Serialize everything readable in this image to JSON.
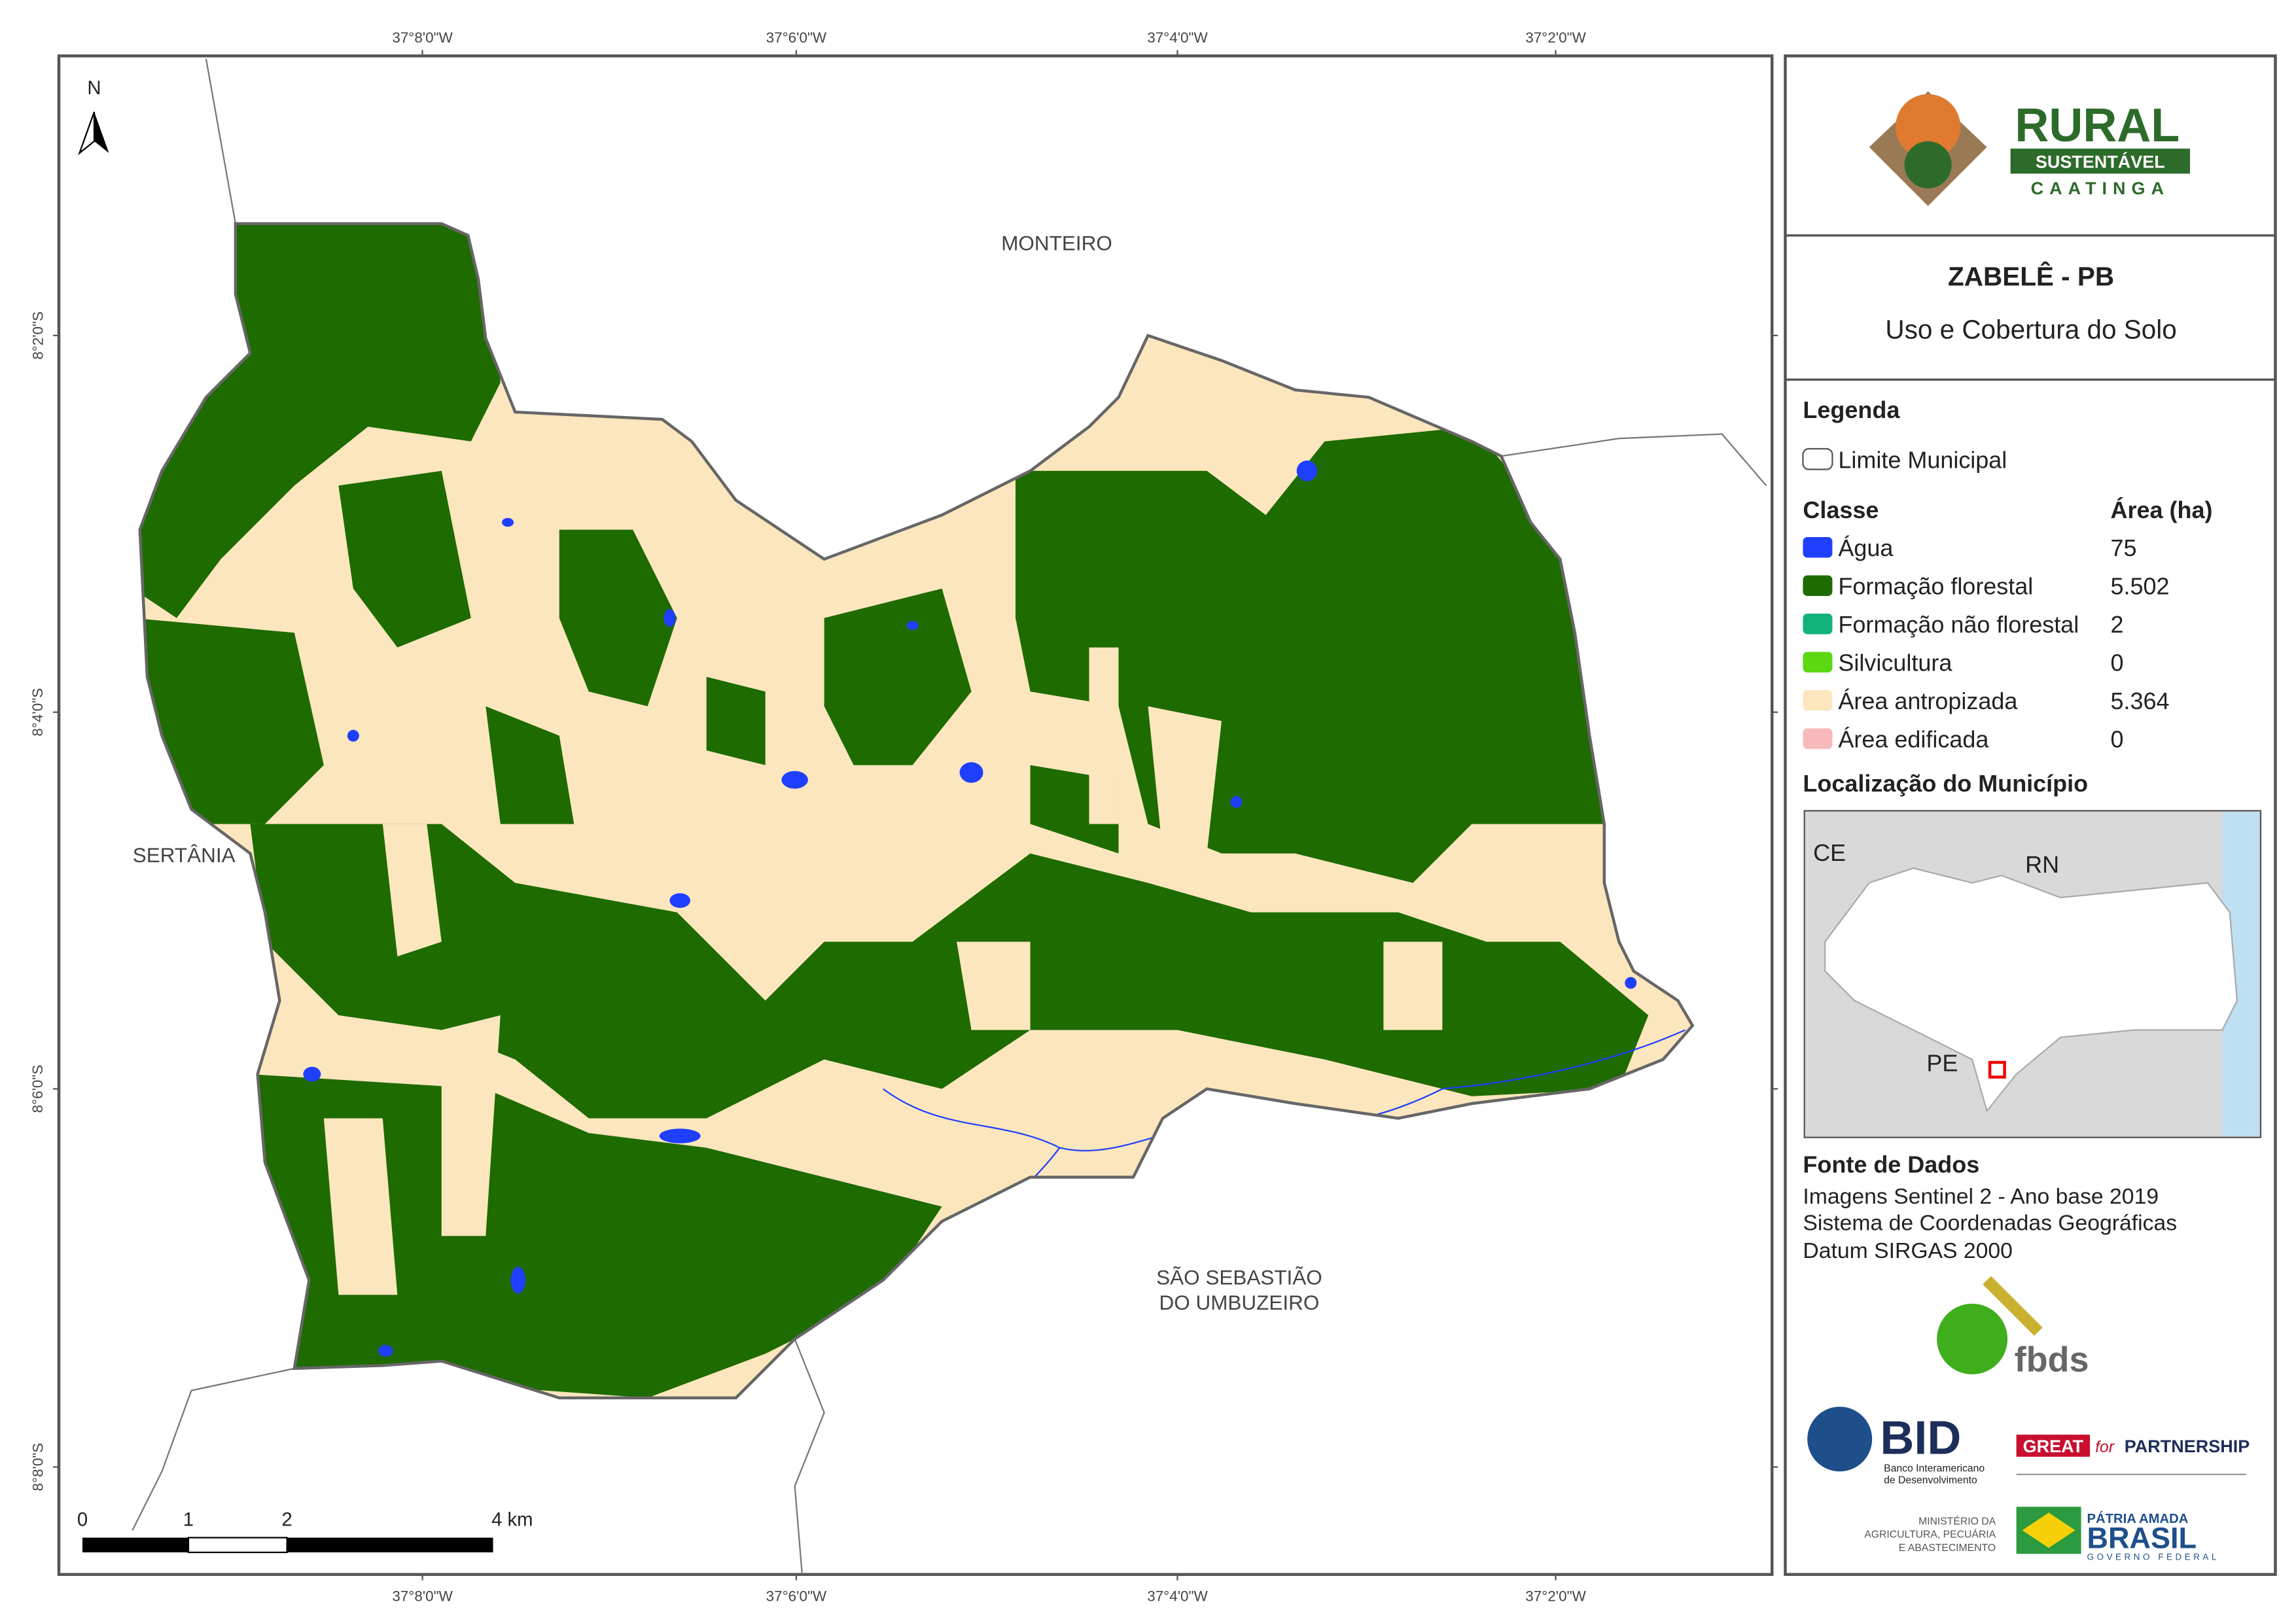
{
  "map": {
    "lon_labels": [
      "37°8'0\"W",
      "37°6'0\"W",
      "37°4'0\"W",
      "37°2'0\"W"
    ],
    "lat_labels": [
      "8°2'0\"S",
      "8°4'0\"S",
      "8°6'0\"S",
      "8°8'0\"S"
    ],
    "north": "N",
    "places": {
      "monteiro": "MONTEIRO",
      "sertania": "SERTÂNIA",
      "sao_sebastiao": [
        "SÃO SEBASTIÃO",
        "DO UMBUZEIRO"
      ]
    },
    "scale_labels": [
      "0",
      "1",
      "2",
      "4 km"
    ]
  },
  "panel": {
    "logo": {
      "rural": "RURAL",
      "sustentavel": "SUSTENTÁVEL",
      "caatinga": "CAATINGA"
    },
    "title": "ZABELÊ - PB",
    "subtitle": "Uso e Cobertura do Solo",
    "legend": {
      "heading": "Legenda",
      "boundary": "Limite Municipal",
      "class_header": "Classe",
      "area_header": "Área (ha)",
      "rows": [
        {
          "name": "Água",
          "area": "75",
          "color": "#1f3fff"
        },
        {
          "name": "Formação florestal",
          "area": "5.502",
          "color": "#1e6b00"
        },
        {
          "name": "Formação não florestal",
          "area": "2",
          "color": "#12b37a"
        },
        {
          "name": "Silvicultura",
          "area": "0",
          "color": "#5ad812"
        },
        {
          "name": "Área antropizada",
          "area": "5.364",
          "color": "#fbe6be"
        },
        {
          "name": "Área edificada",
          "area": "0",
          "color": "#f7b9bb"
        }
      ]
    },
    "location": {
      "heading": "Localização do Município",
      "labels": [
        "CE",
        "RN",
        "PE"
      ]
    },
    "sources": {
      "heading": "Fonte de Dados",
      "lines": [
        "Imagens Sentinel 2 - Ano base 2019",
        "Sistema de Coordenadas Geográficas",
        "Datum SIRGAS 2000"
      ]
    },
    "logos": {
      "fbds": "fbds",
      "bid": "BID",
      "bid_sub": [
        "Banco Interamericano",
        "de Desenvolvimento"
      ],
      "great": "GREAT",
      "for": "for",
      "partnership": "PARTNERSHIP",
      "ministerio": [
        "MINISTÉRIO DA",
        "AGRICULTURA, PECUÁRIA",
        "E ABASTECIMENTO"
      ],
      "patria": "PÁTRIA AMADA",
      "brasil": "BRASIL",
      "governo": "GOVERNO FEDERAL"
    }
  }
}
